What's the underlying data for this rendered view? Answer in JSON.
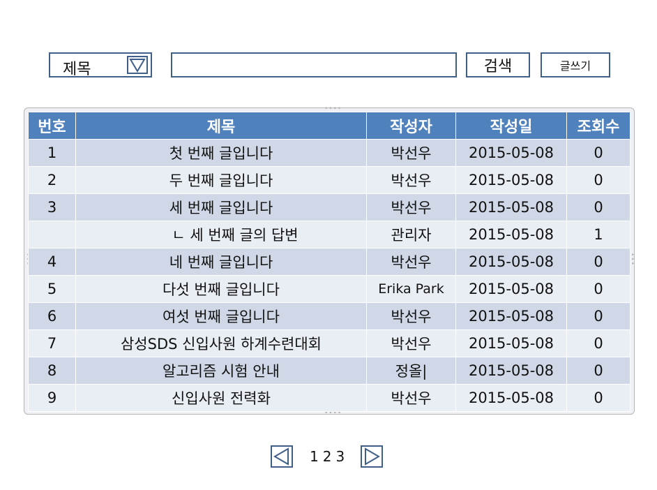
{
  "search": {
    "field_select": "제목",
    "input_value": "",
    "search_button": "검색",
    "write_button": "글쓰기"
  },
  "table": {
    "headers": [
      "번호",
      "제목",
      "작성자",
      "작성일",
      "조회수"
    ],
    "rows": [
      {
        "no": "1",
        "title": "첫 번째 글입니다",
        "author": "박선우",
        "date": "2015-05-08",
        "views": "0"
      },
      {
        "no": "2",
        "title": "두 번째 글입니다",
        "author": "박선우",
        "date": "2015-05-08",
        "views": "0"
      },
      {
        "no": "3",
        "title": "세 번째 글입니다",
        "author": "박선우",
        "date": "2015-05-08",
        "views": "0"
      },
      {
        "no": "",
        "title": "ㄴ 세 번째 글의 답변",
        "author": "관리자",
        "date": "2015-05-08",
        "views": "1"
      },
      {
        "no": "4",
        "title": "네 번째 글입니다",
        "author": "박선우",
        "date": "2015-05-08",
        "views": "0"
      },
      {
        "no": "5",
        "title": "다섯 번째 글입니다",
        "author": "Erika Park",
        "date": "2015-05-08",
        "views": "0"
      },
      {
        "no": "6",
        "title": "여섯 번째 글입니다",
        "author": "박선우",
        "date": "2015-05-08",
        "views": "0"
      },
      {
        "no": "7",
        "title": "삼성SDS 신입사원 하계수련대회",
        "author": "박선우",
        "date": "2015-05-08",
        "views": "0"
      },
      {
        "no": "8",
        "title": "알고리즘 시험 안내",
        "author": "정올|",
        "date": "2015-05-08",
        "views": "0"
      },
      {
        "no": "9",
        "title": "신입사원 전력화",
        "author": "박선우",
        "date": "2015-05-08",
        "views": "0"
      }
    ]
  },
  "pagination": {
    "pages": [
      "1",
      "2",
      "3"
    ]
  },
  "colors": {
    "header_bg": "#4f81bd",
    "row_odd": "#d0d8e8",
    "row_even": "#e9edf4",
    "border": "#3f5f8a"
  },
  "icons": {
    "dropdown": "triangle-down-icon",
    "prev": "triangle-left-icon",
    "next": "triangle-right-icon"
  }
}
